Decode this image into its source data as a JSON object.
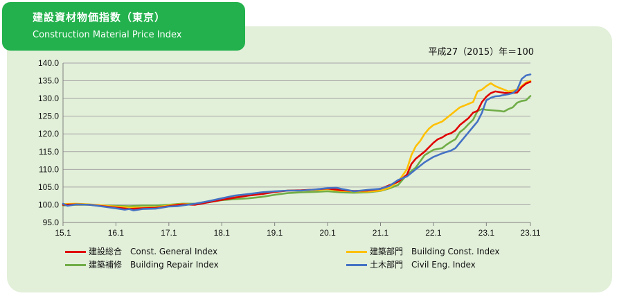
{
  "header": {
    "title_jp": "建設資材物価指数（東京）",
    "title_en": "Construction Material Price Index",
    "base_note": "平成27（2015）年＝100"
  },
  "colors": {
    "header_bg": "#22b14c",
    "panel_bg": "#e2efd9",
    "general": "#e00000",
    "building": "#ffc000",
    "repair": "#70ad47",
    "civil": "#4472c4"
  },
  "chart_data": {
    "type": "line",
    "x_ticks": [
      "15.1",
      "16.1",
      "17.1",
      "18.1",
      "19.1",
      "20.1",
      "21.1",
      "22.1",
      "23.1",
      "23.11"
    ],
    "x_tick_months": [
      0,
      12,
      24,
      36,
      48,
      60,
      72,
      84,
      96,
      106
    ],
    "ylim": [
      95.0,
      140.0
    ],
    "y_ticks": [
      "95.0",
      "100.0",
      "105.0",
      "110.0",
      "115.0",
      "120.0",
      "125.0",
      "130.0",
      "135.0",
      "140.0"
    ],
    "grid": true,
    "legend_position": "bottom",
    "series": [
      {
        "key": "general",
        "name": "建設総合　Const. General  Index",
        "months": [
          0,
          3,
          6,
          9,
          12,
          15,
          18,
          21,
          24,
          27,
          30,
          33,
          36,
          39,
          42,
          45,
          48,
          51,
          54,
          57,
          60,
          63,
          66,
          69,
          72,
          74,
          76,
          78,
          79,
          80,
          82,
          84,
          85,
          86,
          87,
          88,
          89,
          90,
          91,
          92,
          93,
          94,
          95,
          96,
          97,
          98,
          99,
          100,
          101,
          102,
          103,
          104,
          105,
          106
        ],
        "values": [
          100.0,
          100.1,
          100.0,
          99.6,
          99.2,
          98.8,
          99.0,
          99.1,
          99.6,
          100.1,
          100.0,
          100.7,
          101.4,
          102.0,
          102.6,
          103.0,
          103.6,
          104.0,
          104.1,
          104.3,
          104.6,
          104.1,
          103.9,
          104.0,
          104.5,
          105.5,
          106.5,
          108.5,
          111.5,
          113.0,
          115.0,
          117.5,
          118.5,
          119.0,
          119.8,
          120.2,
          121.0,
          122.5,
          123.5,
          124.5,
          126.0,
          126.5,
          129.0,
          130.5,
          131.5,
          132.0,
          131.8,
          131.6,
          131.5,
          131.6,
          131.7,
          133.2,
          134.2,
          134.7
        ]
      },
      {
        "key": "building",
        "name": "建築部門　Building Const. Index",
        "months": [
          0,
          3,
          6,
          9,
          12,
          15,
          18,
          21,
          24,
          27,
          30,
          33,
          36,
          39,
          42,
          45,
          48,
          51,
          54,
          57,
          60,
          63,
          66,
          69,
          72,
          74,
          76,
          78,
          79,
          80,
          81,
          82,
          83,
          84,
          86,
          88,
          89,
          90,
          92,
          93,
          94,
          95,
          96,
          97,
          98,
          99,
          100,
          101,
          102,
          103,
          104,
          105,
          106
        ],
        "values": [
          100.2,
          100.3,
          100.1,
          99.8,
          99.5,
          99.2,
          99.2,
          99.3,
          99.8,
          100.2,
          100.1,
          100.8,
          101.6,
          102.2,
          102.8,
          103.2,
          103.7,
          104.0,
          104.0,
          104.1,
          104.4,
          103.9,
          103.8,
          103.7,
          104.0,
          104.8,
          106.5,
          110.0,
          114.0,
          116.5,
          118.0,
          120.0,
          121.5,
          122.5,
          123.5,
          125.5,
          126.5,
          127.5,
          128.5,
          129.0,
          132.0,
          132.5,
          133.5,
          134.3,
          133.5,
          133.0,
          132.5,
          132.0,
          132.2,
          132.5,
          133.5,
          134.5,
          135.0
        ]
      },
      {
        "key": "repair",
        "name": "建築補修　Building Repair Index",
        "months": [
          0,
          3,
          6,
          9,
          12,
          15,
          18,
          21,
          24,
          27,
          30,
          33,
          36,
          39,
          42,
          45,
          48,
          51,
          54,
          57,
          60,
          63,
          66,
          69,
          72,
          74,
          76,
          78,
          80,
          82,
          84,
          86,
          87,
          88,
          89,
          90,
          91,
          92,
          93,
          94,
          95,
          96,
          97,
          98,
          99,
          100,
          101,
          102,
          103,
          104,
          105,
          106
        ],
        "values": [
          99.8,
          100.0,
          100.0,
          99.8,
          99.7,
          99.6,
          99.8,
          99.8,
          100.0,
          100.3,
          100.3,
          100.7,
          101.3,
          101.6,
          101.8,
          102.2,
          102.8,
          103.3,
          103.5,
          103.6,
          103.8,
          103.5,
          103.4,
          103.5,
          103.9,
          104.6,
          105.6,
          108.5,
          110.5,
          114.0,
          115.5,
          116.0,
          117.0,
          117.8,
          118.5,
          120.5,
          121.5,
          122.8,
          124.0,
          126.5,
          127.0,
          126.8,
          126.7,
          126.6,
          126.5,
          126.3,
          127.0,
          127.5,
          128.8,
          129.3,
          129.5,
          130.7
        ]
      },
      {
        "key": "civil",
        "name": "土木部門　Civil Eng. Index",
        "months": [
          0,
          1,
          3,
          6,
          9,
          12,
          14,
          15,
          16,
          18,
          21,
          24,
          26,
          27,
          30,
          33,
          36,
          39,
          42,
          45,
          48,
          51,
          54,
          57,
          60,
          62,
          63,
          66,
          69,
          72,
          74,
          76,
          78,
          80,
          82,
          84,
          86,
          88,
          89,
          90,
          91,
          92,
          93,
          94,
          95,
          96,
          97,
          98,
          99,
          100,
          101,
          102,
          103,
          104,
          105,
          106
        ],
        "values": [
          100.3,
          99.7,
          100.1,
          100.0,
          99.5,
          99.0,
          98.6,
          98.8,
          98.4,
          98.8,
          98.9,
          99.5,
          99.6,
          99.8,
          100.3,
          101.0,
          101.8,
          102.6,
          103.0,
          103.5,
          103.8,
          104.0,
          104.0,
          104.3,
          104.7,
          104.8,
          104.5,
          103.8,
          104.2,
          104.5,
          105.3,
          107.0,
          108.0,
          110.0,
          112.0,
          113.5,
          114.5,
          115.3,
          116.0,
          117.5,
          119.0,
          120.5,
          122.0,
          123.5,
          126.0,
          129.5,
          130.2,
          130.6,
          130.7,
          131.0,
          131.2,
          131.5,
          132.5,
          135.5,
          136.5,
          136.8
        ]
      }
    ]
  }
}
